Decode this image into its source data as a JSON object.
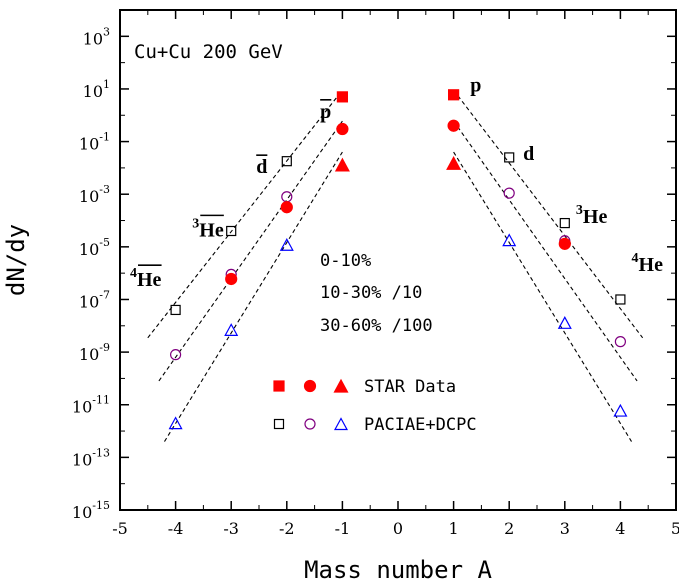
{
  "chart_data": {
    "type": "scatter",
    "title": "Cu+Cu 200 GeV",
    "xlabel": "Mass number A",
    "ylabel": "dN/dy",
    "xlim": [
      -5,
      5
    ],
    "ylim_log10": [
      -15,
      4
    ],
    "y_scale": "log",
    "x_ticks": [
      "-5",
      "-4",
      "-3",
      "-2",
      "-1",
      "0",
      "1",
      "2",
      "3",
      "4",
      "5"
    ],
    "y_ticks": [
      {
        "base": "10",
        "exp": "3"
      },
      {
        "base": "10",
        "exp": "1"
      },
      {
        "base": "10",
        "exp": "-1"
      },
      {
        "base": "10",
        "exp": "-3"
      },
      {
        "base": "10",
        "exp": "-5"
      },
      {
        "base": "10",
        "exp": "-7"
      },
      {
        "base": "10",
        "exp": "-9"
      },
      {
        "base": "10",
        "exp": "-11"
      },
      {
        "base": "10",
        "exp": "-13"
      },
      {
        "base": "10",
        "exp": "-15"
      }
    ],
    "particle_labels": [
      {
        "sup": "",
        "text": "p",
        "bar": true,
        "x": -1.4,
        "y": 0.8
      },
      {
        "sup": "",
        "text": "d",
        "bar": true,
        "x": -2.55,
        "y": 0.0063
      },
      {
        "sup": "3",
        "text": "He",
        "bar": true,
        "x": -3.7,
        "y": 2.5e-05
      },
      {
        "sup": "4",
        "text": "He",
        "bar": true,
        "x": -4.82,
        "y": 3.2e-07
      },
      {
        "sup": "",
        "text": "p",
        "bar": false,
        "x": 1.3,
        "y": 8
      },
      {
        "sup": "",
        "text": "d",
        "bar": false,
        "x": 2.25,
        "y": 0.02
      },
      {
        "sup": "3",
        "text": "He",
        "bar": false,
        "x": 3.2,
        "y": 8e-05
      },
      {
        "sup": "4",
        "text": "He",
        "bar": false,
        "x": 4.2,
        "y": 1.2e-06
      }
    ],
    "centrality_labels": [
      "0-10%",
      "10-30% /10",
      "30-60% /100"
    ],
    "legend": {
      "position": "bottom-center",
      "entries": [
        {
          "label": "STAR Data",
          "markers": [
            "filled-square",
            "filled-circle",
            "filled-triangle"
          ]
        },
        {
          "label": "PACIAE+DCPC",
          "markers": [
            "open-square",
            "open-circle",
            "open-triangle"
          ]
        }
      ]
    },
    "series": [
      {
        "centrality": "0-10%",
        "source": "STAR",
        "marker": "filled-square",
        "color": "#ff0000",
        "points": [
          {
            "x": -1,
            "y": 5
          },
          {
            "x": 1,
            "y": 6
          }
        ]
      },
      {
        "centrality": "10-30%",
        "source": "STAR",
        "marker": "filled-circle",
        "color": "#ff0000",
        "points": [
          {
            "x": -1,
            "y": 0.3
          },
          {
            "x": -2,
            "y": 0.00032
          },
          {
            "x": -3,
            "y": 6e-07
          },
          {
            "x": 1,
            "y": 0.4
          },
          {
            "x": 3,
            "y": 1.3e-05
          }
        ]
      },
      {
        "centrality": "30-60%",
        "source": "STAR",
        "marker": "filled-triangle",
        "color": "#ff0000",
        "points": [
          {
            "x": -1,
            "y": 0.013
          },
          {
            "x": 1,
            "y": 0.015
          }
        ]
      },
      {
        "centrality": "0-10%",
        "source": "PACIAE+DCPC",
        "marker": "open-square",
        "color": "#000000",
        "points": [
          {
            "x": -4,
            "y": 4e-08
          },
          {
            "x": -3,
            "y": 4e-05
          },
          {
            "x": -2,
            "y": 0.018
          },
          {
            "x": 2,
            "y": 0.025
          },
          {
            "x": 3,
            "y": 8e-05
          },
          {
            "x": 4,
            "y": 1e-07
          }
        ]
      },
      {
        "centrality": "10-30%",
        "source": "PACIAE+DCPC",
        "marker": "open-circle",
        "color": "#800080",
        "points": [
          {
            "x": -4,
            "y": 8e-10
          },
          {
            "x": -3,
            "y": 9e-07
          },
          {
            "x": -2,
            "y": 0.0008
          },
          {
            "x": 2,
            "y": 0.0011
          },
          {
            "x": 3,
            "y": 1.7e-05
          },
          {
            "x": 4,
            "y": 2.5e-09
          }
        ]
      },
      {
        "centrality": "30-60%",
        "source": "PACIAE+DCPC",
        "marker": "open-triangle",
        "color": "#0000ff",
        "points": [
          {
            "x": -4,
            "y": 2e-12
          },
          {
            "x": -3,
            "y": 7e-09
          },
          {
            "x": -2,
            "y": 1.2e-05
          },
          {
            "x": 2,
            "y": 1.8e-05
          },
          {
            "x": 3,
            "y": 1.3e-08
          },
          {
            "x": 4,
            "y": 6e-12
          }
        ]
      }
    ],
    "fit_lines": [
      {
        "color": "#000000",
        "from": {
          "x": -4.5,
          "y": 3.5e-09
        },
        "to": {
          "x": -1,
          "y": 9
        }
      },
      {
        "color": "#000000",
        "from": {
          "x": -4.3,
          "y": 8e-11
        },
        "to": {
          "x": -1,
          "y": 0.6
        }
      },
      {
        "color": "#000000",
        "from": {
          "x": -4.2,
          "y": 4e-13
        },
        "to": {
          "x": -1,
          "y": 0.04
        }
      },
      {
        "color": "#000000",
        "from": {
          "x": 1,
          "y": 9
        },
        "to": {
          "x": 4.4,
          "y": 3.5e-09
        }
      },
      {
        "color": "#000000",
        "from": {
          "x": 1,
          "y": 0.6
        },
        "to": {
          "x": 4.3,
          "y": 8e-11
        }
      },
      {
        "color": "#000000",
        "from": {
          "x": 1,
          "y": 0.04
        },
        "to": {
          "x": 4.2,
          "y": 4e-13
        }
      }
    ]
  }
}
